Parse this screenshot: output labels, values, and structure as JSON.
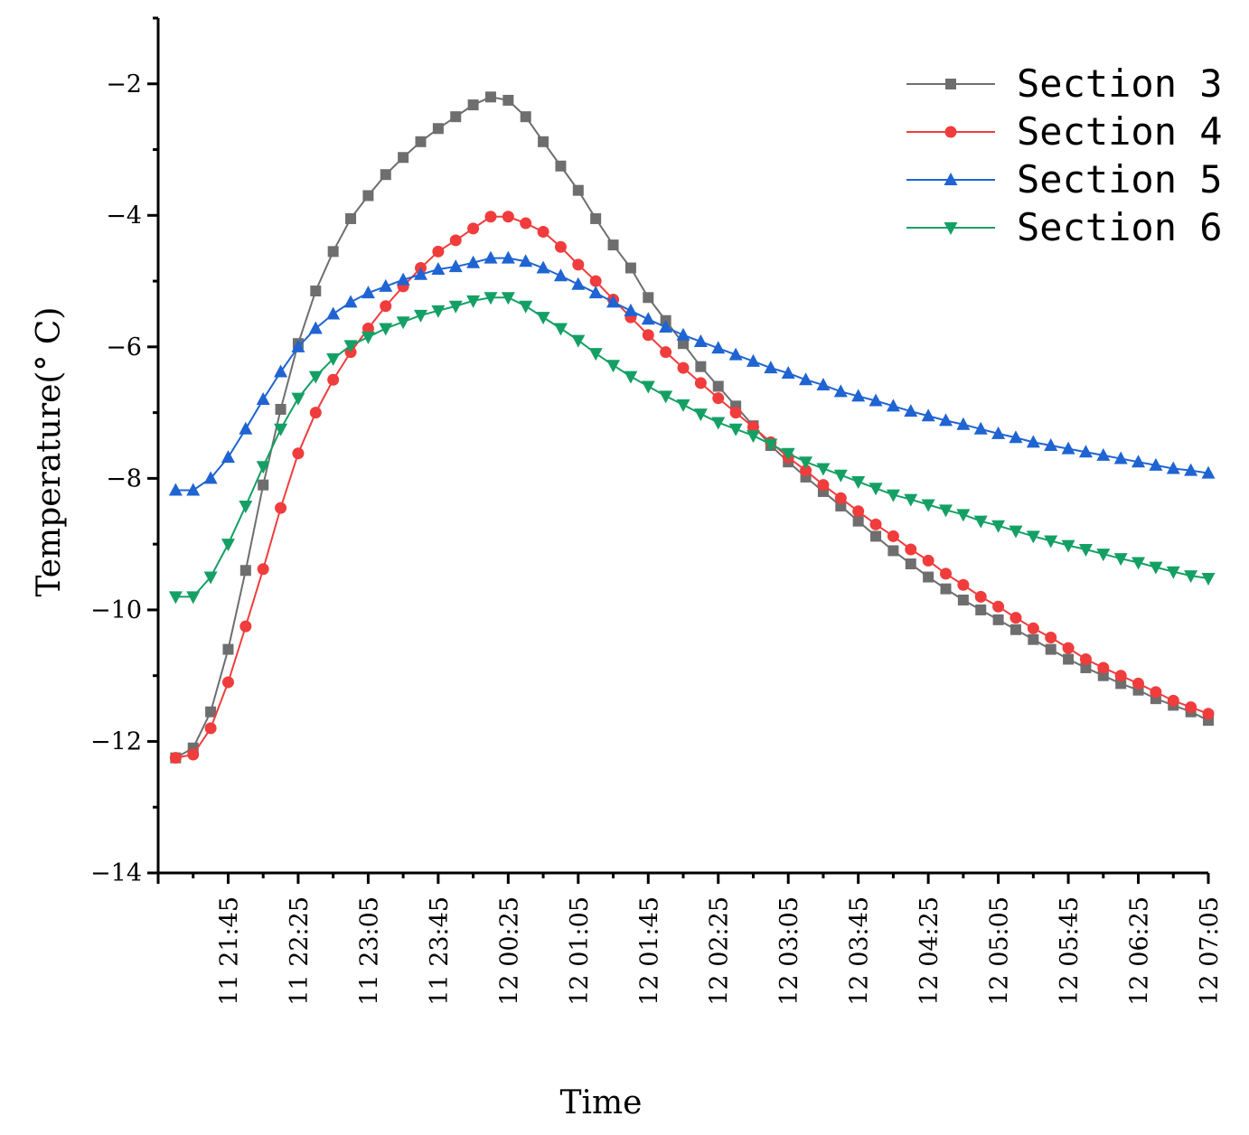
{
  "chart_data": {
    "type": "line",
    "title": "",
    "xlabel": "Time",
    "ylabel": "Temperature(° C)",
    "ylim": [
      -14,
      -1
    ],
    "y_ticks": [
      -14,
      -12,
      -10,
      -8,
      -6,
      -4,
      -2
    ],
    "y_tick_labels": [
      "−14",
      "−12",
      "−10",
      "−8",
      "−6",
      "−4",
      "−2"
    ],
    "x_tick_labels": [
      {
        "day": "11",
        "time": "21:45"
      },
      {
        "day": "11",
        "time": "22:25"
      },
      {
        "day": "11",
        "time": "23:05"
      },
      {
        "day": "11",
        "time": "23:45"
      },
      {
        "day": "12",
        "time": "00:25"
      },
      {
        "day": "12",
        "time": "01:05"
      },
      {
        "day": "12",
        "time": "01:45"
      },
      {
        "day": "12",
        "time": "02:25"
      },
      {
        "day": "12",
        "time": "03:05"
      },
      {
        "day": "12",
        "time": "03:45"
      },
      {
        "day": "12",
        "time": "04:25"
      },
      {
        "day": "12",
        "time": "05:05"
      },
      {
        "day": "12",
        "time": "05:45"
      },
      {
        "day": "12",
        "time": "06:25"
      },
      {
        "day": "12",
        "time": "07:05"
      }
    ],
    "x_unit": "minutes after 11 21:05",
    "x_range": [
      0,
      600
    ],
    "x_tick_values": [
      40,
      80,
      120,
      160,
      200,
      240,
      280,
      320,
      360,
      400,
      440,
      480,
      520,
      560,
      600
    ],
    "sample_interval_min": 10,
    "sample_start": 10,
    "legend_position": "top-right",
    "series": [
      {
        "name": "Section 3",
        "color": "#6e6e6e",
        "marker": "square",
        "values": [
          -12.25,
          -12.1,
          -11.55,
          -10.6,
          -9.4,
          -8.1,
          -6.95,
          -5.95,
          -5.15,
          -4.55,
          -4.05,
          -3.7,
          -3.38,
          -3.12,
          -2.88,
          -2.68,
          -2.5,
          -2.32,
          -2.2,
          -2.25,
          -2.5,
          -2.88,
          -3.25,
          -3.62,
          -4.05,
          -4.45,
          -4.8,
          -5.25,
          -5.6,
          -5.95,
          -6.3,
          -6.6,
          -6.9,
          -7.2,
          -7.5,
          -7.75,
          -7.98,
          -8.2,
          -8.42,
          -8.65,
          -8.88,
          -9.1,
          -9.3,
          -9.5,
          -9.68,
          -9.85,
          -10.0,
          -10.15,
          -10.3,
          -10.45,
          -10.6,
          -10.75,
          -10.88,
          -11.0,
          -11.12,
          -11.22,
          -11.35,
          -11.45,
          -11.55,
          -11.68
        ]
      },
      {
        "name": "Section 4",
        "color": "#f03c3c",
        "marker": "circle",
        "values": [
          -12.25,
          -12.2,
          -11.8,
          -11.1,
          -10.25,
          -9.38,
          -8.45,
          -7.62,
          -7.0,
          -6.5,
          -6.08,
          -5.72,
          -5.38,
          -5.08,
          -4.8,
          -4.55,
          -4.38,
          -4.2,
          -4.02,
          -4.02,
          -4.12,
          -4.25,
          -4.48,
          -4.75,
          -5.0,
          -5.28,
          -5.55,
          -5.82,
          -6.08,
          -6.32,
          -6.55,
          -6.78,
          -7.0,
          -7.22,
          -7.45,
          -7.68,
          -7.88,
          -8.1,
          -8.3,
          -8.5,
          -8.7,
          -8.88,
          -9.08,
          -9.25,
          -9.45,
          -9.62,
          -9.8,
          -9.95,
          -10.12,
          -10.28,
          -10.42,
          -10.58,
          -10.75,
          -10.88,
          -11.0,
          -11.12,
          -11.25,
          -11.38,
          -11.48,
          -11.58
        ]
      },
      {
        "name": "Section 5",
        "color": "#1f64d2",
        "marker": "triangle-up",
        "values": [
          -8.18,
          -8.18,
          -8.0,
          -7.68,
          -7.25,
          -6.8,
          -6.38,
          -6.0,
          -5.72,
          -5.5,
          -5.32,
          -5.18,
          -5.08,
          -4.98,
          -4.9,
          -4.82,
          -4.78,
          -4.72,
          -4.65,
          -4.65,
          -4.7,
          -4.8,
          -4.92,
          -5.05,
          -5.18,
          -5.32,
          -5.45,
          -5.58,
          -5.7,
          -5.82,
          -5.92,
          -6.02,
          -6.12,
          -6.22,
          -6.32,
          -6.4,
          -6.5,
          -6.58,
          -6.68,
          -6.75,
          -6.82,
          -6.9,
          -6.98,
          -7.05,
          -7.12,
          -7.18,
          -7.25,
          -7.32,
          -7.38,
          -7.45,
          -7.5,
          -7.55,
          -7.6,
          -7.65,
          -7.7,
          -7.75,
          -7.8,
          -7.85,
          -7.88,
          -7.92
        ]
      },
      {
        "name": "Section 6",
        "color": "#14a064",
        "marker": "triangle-down",
        "values": [
          -9.8,
          -9.8,
          -9.5,
          -9.0,
          -8.42,
          -7.82,
          -7.25,
          -6.78,
          -6.45,
          -6.18,
          -5.98,
          -5.85,
          -5.72,
          -5.62,
          -5.52,
          -5.45,
          -5.38,
          -5.3,
          -5.25,
          -5.25,
          -5.38,
          -5.55,
          -5.72,
          -5.9,
          -6.1,
          -6.28,
          -6.45,
          -6.6,
          -6.75,
          -6.88,
          -7.02,
          -7.15,
          -7.25,
          -7.35,
          -7.48,
          -7.62,
          -7.75,
          -7.85,
          -7.95,
          -8.05,
          -8.15,
          -8.25,
          -8.32,
          -8.4,
          -8.48,
          -8.55,
          -8.65,
          -8.72,
          -8.8,
          -8.88,
          -8.95,
          -9.02,
          -9.08,
          -9.15,
          -9.22,
          -9.28,
          -9.35,
          -9.42,
          -9.48,
          -9.52
        ]
      }
    ]
  }
}
